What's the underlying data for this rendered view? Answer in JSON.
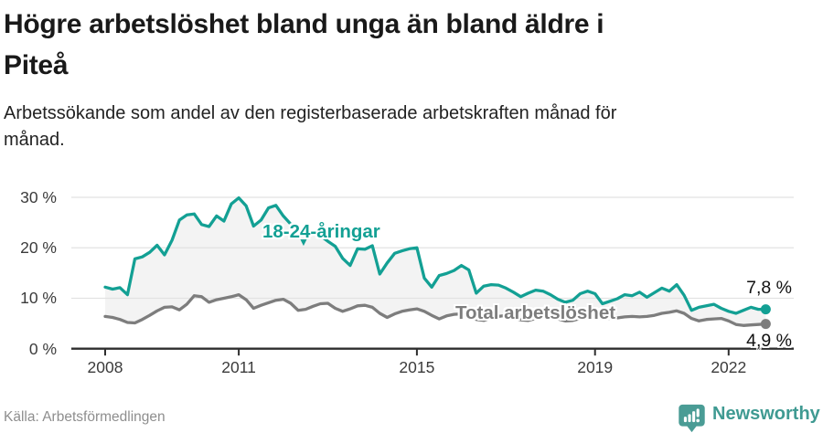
{
  "header": {
    "title_lines": [
      "Högre arbetslöshet bland unga än bland äldre i",
      "Piteå"
    ],
    "subtitle_lines": [
      "Arbetssökande som andel av den registerbaserade arbetskraften månad för",
      "månad."
    ]
  },
  "chart_data": {
    "type": "line",
    "title": "Högre arbetslöshet bland unga än bland äldre i Piteå",
    "subtitle": "Arbetssökande som andel av den registerbaserade arbetskraften månad för månad.",
    "unit": "%",
    "x_start": 2008.0,
    "x_step_years": 0.166667,
    "x_end_approx": "2022-11",
    "xlim": [
      2007.2,
      2023.5
    ],
    "ylim": [
      0,
      32
    ],
    "grid": "horizontal",
    "x_ticks": [
      2008,
      2011,
      2015,
      2019,
      2022
    ],
    "y_ticks": [
      30,
      20,
      10,
      0
    ],
    "y_tick_suffix": " %",
    "band_color": "#f3f3f3",
    "grid_color": "#e2e2e2",
    "axis_color": "#2e2e2e",
    "band_fill_between_series": true,
    "series": [
      {
        "name": "18-24-åringar",
        "color": "#13a094",
        "end_label": "7,8 %",
        "end_value": 7.8,
        "values": [
          12.2,
          11.8,
          12.1,
          10.7,
          17.8,
          18.2,
          19.1,
          20.5,
          18.6,
          21.5,
          25.5,
          26.5,
          26.7,
          24.6,
          24.2,
          26.3,
          25.3,
          28.7,
          29.9,
          28.3,
          24.3,
          25.5,
          27.9,
          28.4,
          26.3,
          24.7,
          23.8,
          23.3,
          22.9,
          22.4,
          21.3,
          20.3,
          17.9,
          16.5,
          19.8,
          19.7,
          20.4,
          14.8,
          17.0,
          18.9,
          19.4,
          19.8,
          20.0,
          14.0,
          12.2,
          14.5,
          14.9,
          15.5,
          16.5,
          15.6,
          11.0,
          12.4,
          12.7,
          12.6,
          12.0,
          11.2,
          10.3,
          11.0,
          11.6,
          11.4,
          10.7,
          9.8,
          9.2,
          9.6,
          10.9,
          11.4,
          10.9,
          8.9,
          9.4,
          9.9,
          10.7,
          10.5,
          11.2,
          10.2,
          11.1,
          12.0,
          11.4,
          12.7,
          10.6,
          7.6,
          8.2,
          8.5,
          8.8,
          8.0,
          7.4,
          7.0,
          7.6,
          8.2,
          7.8,
          7.8
        ]
      },
      {
        "name": "Total arbetslöshet",
        "color": "#7d7d7d",
        "end_label": "4,9 %",
        "end_value": 4.9,
        "values": [
          6.4,
          6.2,
          5.8,
          5.2,
          5.1,
          5.8,
          6.6,
          7.5,
          8.2,
          8.3,
          7.7,
          8.8,
          10.5,
          10.3,
          9.2,
          9.7,
          10.0,
          10.3,
          10.7,
          9.7,
          8.0,
          8.6,
          9.1,
          9.6,
          9.8,
          9.0,
          7.6,
          7.8,
          8.4,
          8.9,
          9.0,
          8.0,
          7.4,
          7.9,
          8.5,
          8.6,
          8.2,
          7.0,
          6.2,
          6.9,
          7.4,
          7.7,
          7.9,
          7.4,
          6.6,
          5.9,
          6.5,
          6.8,
          6.9,
          6.3,
          5.8,
          5.6,
          6.1,
          6.4,
          6.6,
          6.1,
          5.7,
          5.6,
          6.0,
          6.3,
          6.4,
          5.9,
          5.5,
          5.6,
          6.0,
          6.2,
          6.3,
          5.9,
          6.0,
          6.1,
          6.3,
          6.4,
          6.3,
          6.4,
          6.6,
          7.0,
          7.2,
          7.5,
          7.0,
          6.0,
          5.5,
          5.8,
          5.9,
          6.0,
          5.5,
          4.8,
          4.6,
          4.7,
          4.8,
          4.9
        ]
      }
    ]
  },
  "annotations": {
    "pointer_glyph": "▼"
  },
  "footer": {
    "source": "Källa: Arbetsförmedlingen",
    "brand": "Newsworthy",
    "brand_color": "#3f9a92",
    "logo_color": "#4a9c95"
  }
}
